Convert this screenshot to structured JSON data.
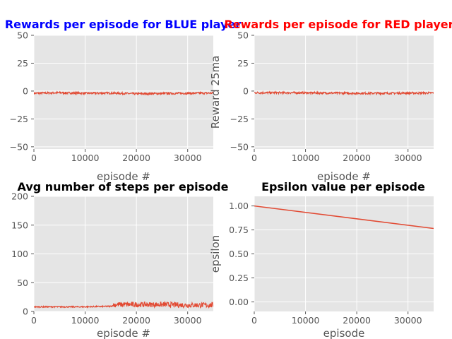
{
  "chart_data": [
    {
      "type": "line",
      "title": "Rewards per episode for BLUE player",
      "title_color": "#0000ff",
      "xlabel": "episode #",
      "ylabel": "",
      "xlim": [
        0,
        35000
      ],
      "ylim": [
        -52,
        50
      ],
      "xticks": [
        0,
        10000,
        20000,
        30000
      ],
      "yticks": [
        -50,
        -25,
        0,
        25,
        50
      ],
      "xtick_labels": [
        "0",
        "10000",
        "20000",
        "30000"
      ],
      "ytick_labels": [
        "−50",
        "−25",
        "0",
        "25",
        "50"
      ],
      "grid": true,
      "line_color": "#e24a33",
      "series": [
        {
          "x": [
            0,
            5000,
            10000,
            15000,
            20000,
            25000,
            30000,
            35000
          ],
          "y": [
            -2,
            -1.5,
            -2,
            -1.8,
            -2.5,
            -2.2,
            -2,
            -1.8
          ]
        }
      ]
    },
    {
      "type": "line",
      "title": "Rewards per episode for RED player",
      "title_color": "#ff0000",
      "xlabel": "episode #",
      "ylabel": "Reward 25ma",
      "xlim": [
        0,
        35000
      ],
      "ylim": [
        -52,
        50
      ],
      "xticks": [
        0,
        10000,
        20000,
        30000
      ],
      "yticks": [
        -50,
        -25,
        0,
        25,
        50
      ],
      "xtick_labels": [
        "0",
        "10000",
        "20000",
        "30000"
      ],
      "ytick_labels": [
        "−50",
        "−25",
        "0",
        "25",
        "50"
      ],
      "grid": true,
      "line_color": "#e24a33",
      "series": [
        {
          "x": [
            0,
            5000,
            10000,
            15000,
            20000,
            25000,
            30000,
            35000
          ],
          "y": [
            -1.5,
            -1.5,
            -1.6,
            -1.8,
            -2,
            -2,
            -1.8,
            -1.7
          ]
        }
      ]
    },
    {
      "type": "line",
      "title": "Avg number of steps per episode",
      "title_color": "#000000",
      "xlabel": "episode #",
      "ylabel": "",
      "xlim": [
        0,
        35000
      ],
      "ylim": [
        0,
        200
      ],
      "xticks": [
        0,
        10000,
        20000,
        30000
      ],
      "yticks": [
        0,
        50,
        100,
        150,
        200
      ],
      "xtick_labels": [
        "0",
        "10000",
        "20000",
        "30000"
      ],
      "ytick_labels": [
        "0",
        "50",
        "100",
        "150",
        "200"
      ],
      "grid": true,
      "line_color": "#e24a33",
      "series": [
        {
          "x": [
            0,
            5000,
            10000,
            15000,
            16000,
            20000,
            25000,
            30000,
            35000
          ],
          "y": [
            8,
            8,
            8,
            9,
            12,
            12,
            12,
            11,
            11
          ]
        }
      ]
    },
    {
      "type": "line",
      "title": "Epsilon value per episode",
      "title_color": "#000000",
      "xlabel": "episode",
      "ylabel": "epsilon",
      "xlim": [
        0,
        35000
      ],
      "ylim": [
        -0.1,
        1.1
      ],
      "xticks": [
        0,
        10000,
        20000,
        30000
      ],
      "yticks": [
        0.0,
        0.25,
        0.5,
        0.75,
        1.0
      ],
      "xtick_labels": [
        "0",
        "10000",
        "20000",
        "30000"
      ],
      "ytick_labels": [
        "0.00",
        "0.25",
        "0.50",
        "0.75",
        "1.00"
      ],
      "grid": true,
      "line_color": "#e24a33",
      "series": [
        {
          "x": [
            0,
            35000
          ],
          "y": [
            1.0,
            0.765
          ]
        }
      ]
    }
  ]
}
